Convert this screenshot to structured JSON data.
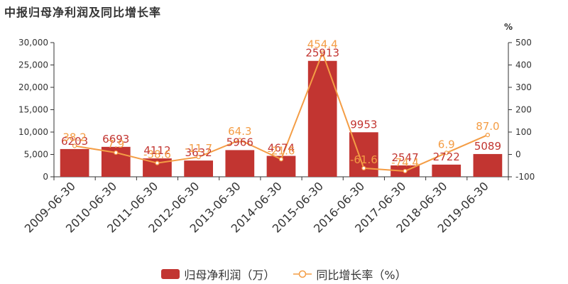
{
  "title": "中报归母净利润及同比增长率",
  "chart_data": {
    "type": "bar+line",
    "categories": [
      "2009-06-30",
      "2010-06-30",
      "2011-06-30",
      "2012-06-30",
      "2013-06-30",
      "2014-06-30",
      "2015-06-30",
      "2016-06-30",
      "2017-06-30",
      "2018-06-30",
      "2019-06-30"
    ],
    "series": [
      {
        "name": "归母净利润（万）",
        "type": "bar",
        "axis": "left",
        "color": "#c23531",
        "values": [
          6203,
          6693,
          4112,
          3632,
          5966,
          4674,
          25913,
          9953,
          2547,
          2722,
          5089
        ],
        "labels": [
          "6203",
          "6693",
          "4112",
          "3632",
          "5966",
          "4674",
          "25913",
          "9953",
          "2547",
          "2722",
          "5089"
        ]
      },
      {
        "name": "同比增长率（%）",
        "type": "line",
        "axis": "right",
        "color": "#f49d45",
        "values": [
          38.2,
          7.9,
          -38.6,
          -11.7,
          64.3,
          -21.6,
          454.4,
          -61.6,
          -74.4,
          6.9,
          87.0
        ],
        "labels": [
          "38.2",
          "7.9",
          "-38.6",
          "-11.7",
          "64.3",
          "-21.6",
          "454.4",
          "-61.6",
          "-74.4",
          "6.9",
          "87.0"
        ]
      }
    ],
    "y_left": {
      "min": 0,
      "max": 30000,
      "ticks": [
        "0",
        "5,000",
        "10,000",
        "15,000",
        "20,000",
        "25,000",
        "30,000"
      ]
    },
    "y_right": {
      "min": -100,
      "max": 500,
      "unit": "%",
      "ticks": [
        "-100",
        "0",
        "100",
        "200",
        "300",
        "400",
        "500"
      ]
    },
    "grid": false,
    "legend_position": "bottom-center"
  }
}
